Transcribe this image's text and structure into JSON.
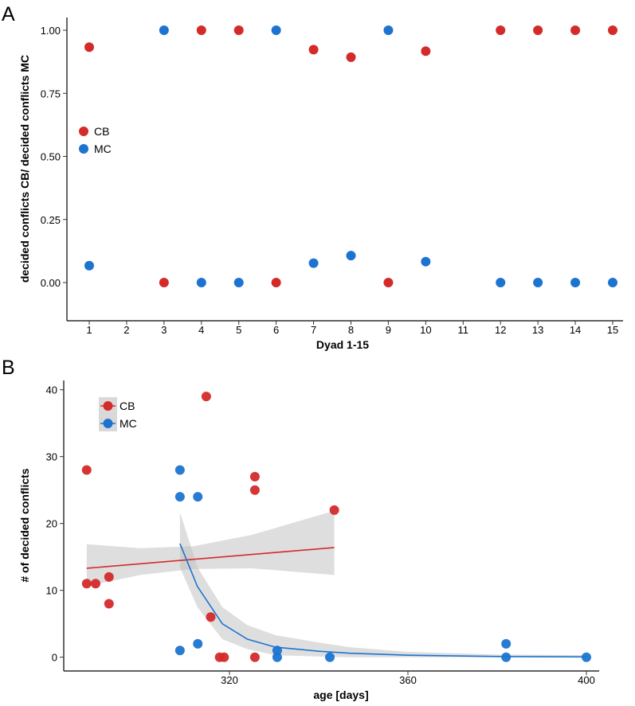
{
  "colors": {
    "CB": "#d42a2a",
    "MC": "#1c74d0",
    "ribbon": "#bdbdbd"
  },
  "chart_data": [
    {
      "panel_label": "A",
      "type": "scatter",
      "xlabel": "Dyad 1-15",
      "ylabel": "decided conflicts CB/ decided conflicts MC",
      "x_ticks": [
        "1",
        "2",
        "3",
        "4",
        "5",
        "6",
        "7",
        "8",
        "9",
        "10",
        "11",
        "12",
        "13",
        "14",
        "15"
      ],
      "y_ticks": [
        "0.00",
        "0.25",
        "0.50",
        "0.75",
        "1.00"
      ],
      "xlim": [
        1,
        15
      ],
      "ylim": [
        0,
        1
      ],
      "grid": false,
      "legend": {
        "placement": "left-middle",
        "entries": [
          "CB",
          "MC"
        ]
      },
      "series": [
        {
          "name": "CB",
          "x": [
            1,
            3,
            4,
            5,
            6,
            7,
            8,
            9,
            10,
            12,
            13,
            14,
            15
          ],
          "y": [
            0.933,
            0,
            1,
            1,
            0,
            0.923,
            0.893,
            0,
            0.917,
            1,
            1,
            1,
            1
          ]
        },
        {
          "name": "MC",
          "x": [
            1,
            3,
            4,
            5,
            6,
            7,
            8,
            9,
            10,
            12,
            13,
            14,
            15
          ],
          "y": [
            0.067,
            1,
            0,
            0,
            1,
            0.077,
            0.107,
            1,
            0.083,
            0,
            0,
            0,
            0
          ]
        }
      ]
    },
    {
      "panel_label": "B",
      "type": "scatter",
      "xlabel": "age [days]",
      "ylabel": "# of decided conflicts",
      "x_ticks": [
        "320",
        "360",
        "400"
      ],
      "y_ticks": [
        "0",
        "10",
        "20",
        "30",
        "40"
      ],
      "xlim": [
        283,
        403
      ],
      "ylim": [
        -1.5,
        41.5
      ],
      "grid": false,
      "legend": {
        "placement": "top-left",
        "entries": [
          "CB",
          "MC"
        ]
      },
      "series": [
        {
          "name": "CB",
          "x": [
            288,
            288,
            290,
            293,
            293,
            314.8,
            315.8,
            317.8,
            318.8,
            325.7,
            325.7,
            325.7,
            343.5
          ],
          "y": [
            28,
            11,
            11,
            12,
            8,
            39,
            6,
            0,
            0,
            27,
            25,
            0,
            22
          ],
          "fit": {
            "method": "linear",
            "x": [
              288,
              343.5
            ],
            "y": [
              13.3,
              16.4
            ]
          },
          "ribbon": {
            "x": [
              288,
              300,
              312,
              325,
              343.5
            ],
            "lower": [
              10.6,
              12.3,
              13.2,
              13.3,
              12.3
            ],
            "upper": [
              16.9,
              16.3,
              16.6,
              18.3,
              21.9
            ]
          }
        },
        {
          "name": "MC",
          "x": [
            308.9,
            308.9,
            312.9,
            308.9,
            312.9,
            330.7,
            330.7,
            342.5,
            382,
            382,
            400
          ],
          "y": [
            28,
            24,
            24,
            1,
            2,
            1,
            0,
            0,
            2,
            0,
            0
          ],
          "fit": {
            "method": "exponential",
            "x": [
              308.9,
              312.8,
              318.4,
              324,
              330.3,
              340,
              347,
              360,
              380,
              400
            ],
            "y": [
              17,
              10.6,
              5,
              2.7,
              1.5,
              0.9,
              0.6,
              0.3,
              0.1,
              0.05
            ]
          },
          "ribbon": {
            "x": [
              308.9,
              312.8,
              318.4,
              324,
              330.3,
              340,
              347,
              360,
              380,
              400
            ],
            "lower": [
              13.4,
              7.5,
              2.7,
              1.2,
              0.3,
              0.1,
              0,
              0,
              0,
              0
            ],
            "upper": [
              21.7,
              13.5,
              7.5,
              4.8,
              3.3,
              2.2,
              1.5,
              0.8,
              0.4,
              0.3
            ]
          }
        }
      ]
    }
  ]
}
